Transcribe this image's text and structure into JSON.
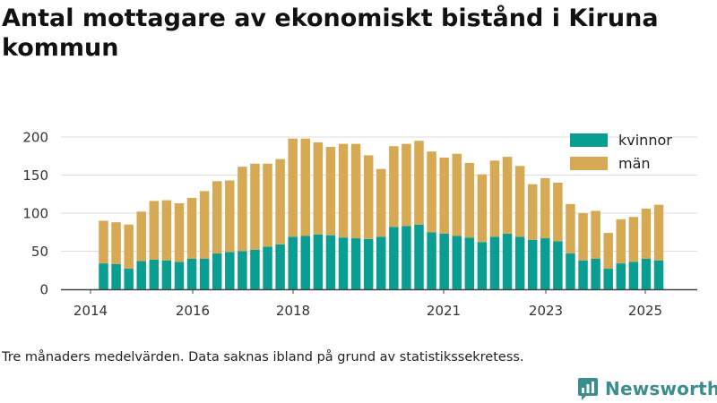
{
  "title": "Antal mottagare av ekonomiskt bistånd i Kiruna kommun",
  "footnote": "Tre månaders medelvärden. Data saknas ibland på grund av statistikssekretess.",
  "brand": {
    "name": "Newsworthy",
    "icon": "newsworthy-logo-icon",
    "color": "#3a8f8c"
  },
  "colors": {
    "kvinnor": "#0a9e93",
    "man": "#d6aa55",
    "grid": "#dddddd",
    "axis": "#444444"
  },
  "chart_data": {
    "type": "bar",
    "stacked": true,
    "title": "Antal mottagare av ekonomiskt bistånd i Kiruna kommun",
    "legend_position": "top-right",
    "grid": true,
    "ylim": [
      0,
      200
    ],
    "y_ticks": [
      0,
      50,
      100,
      150,
      200
    ],
    "x_tick_labels": [
      "2014",
      "2016",
      "2018",
      "2021",
      "2023",
      "2025"
    ],
    "series": [
      {
        "name": "kvinnor",
        "values": [
          34,
          33,
          27,
          37,
          39,
          38,
          36,
          40,
          40,
          47,
          49,
          50,
          52,
          56,
          59,
          69,
          70,
          72,
          71,
          68,
          67,
          66,
          69,
          82,
          83,
          85,
          75,
          73,
          70,
          68,
          62,
          69,
          73,
          69,
          65,
          67,
          63,
          47,
          38,
          40,
          27,
          34,
          36,
          40,
          38
        ]
      },
      {
        "name": "män",
        "values": [
          56,
          55,
          58,
          65,
          77,
          79,
          77,
          80,
          89,
          95,
          94,
          111,
          113,
          109,
          112,
          129,
          128,
          121,
          116,
          123,
          124,
          110,
          89,
          106,
          108,
          110,
          106,
          100,
          108,
          98,
          89,
          100,
          101,
          93,
          73,
          79,
          77,
          65,
          62,
          63,
          47,
          58,
          59,
          66,
          73
        ]
      }
    ]
  }
}
